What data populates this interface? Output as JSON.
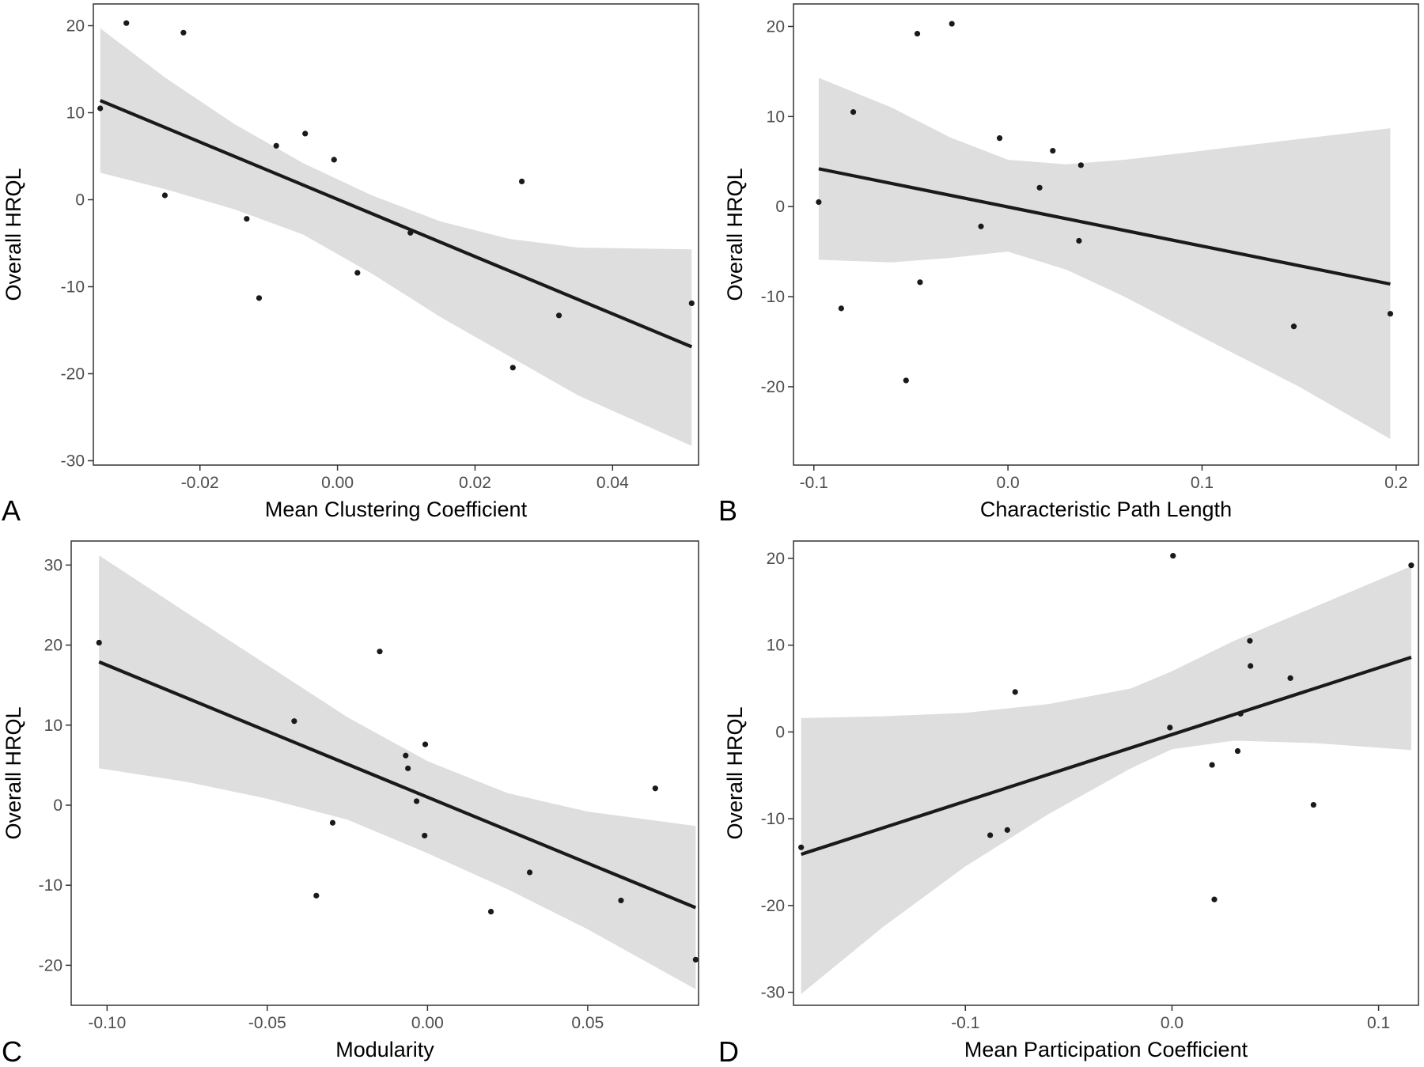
{
  "chart_data": [
    {
      "type": "scatter",
      "panel_label": "A",
      "xlabel": "Mean Clustering Coefficient",
      "ylabel": "Overall HRQL",
      "xlim": [
        -0.0355,
        0.0525
      ],
      "ylim": [
        -30.5,
        22.5
      ],
      "xticks": [
        -0.02,
        0.0,
        0.02,
        0.04
      ],
      "xtick_labels": [
        "-0.02",
        "0.00",
        "0.02",
        "0.04"
      ],
      "yticks": [
        -30,
        -20,
        -10,
        0,
        10,
        20
      ],
      "ytick_labels": [
        "-30",
        "-20",
        "-10",
        "0",
        "10",
        "20"
      ],
      "grid": false,
      "legend": false,
      "points": [
        {
          "x": -0.0345,
          "y": 10.5
        },
        {
          "x": -0.0307,
          "y": 20.3
        },
        {
          "x": -0.0224,
          "y": 19.2
        },
        {
          "x": -0.0251,
          "y": 0.5
        },
        {
          "x": -0.0132,
          "y": -2.2
        },
        {
          "x": -0.0114,
          "y": -11.3
        },
        {
          "x": -0.0089,
          "y": 6.2
        },
        {
          "x": -0.0047,
          "y": 7.6
        },
        {
          "x": -0.0005,
          "y": 4.6
        },
        {
          "x": 0.0029,
          "y": -8.4
        },
        {
          "x": 0.0106,
          "y": -3.8
        },
        {
          "x": 0.0255,
          "y": -19.3
        },
        {
          "x": 0.0268,
          "y": 2.1
        },
        {
          "x": 0.0322,
          "y": -13.3
        },
        {
          "x": 0.0515,
          "y": -11.9
        }
      ],
      "fit_line": {
        "x": [
          -0.0345,
          0.0515
        ],
        "y": [
          11.4,
          -16.9
        ]
      },
      "confidence_band": {
        "x": [
          -0.0345,
          -0.025,
          -0.015,
          -0.005,
          0.005,
          0.015,
          0.025,
          0.035,
          0.0515
        ],
        "lower": [
          3.1,
          1.2,
          -1.1,
          -4.0,
          -8.5,
          -13.5,
          -18.0,
          -22.5,
          -28.3
        ],
        "upper": [
          19.7,
          14.0,
          8.7,
          4.2,
          0.5,
          -2.5,
          -4.5,
          -5.5,
          -5.7
        ]
      }
    },
    {
      "type": "scatter",
      "panel_label": "B",
      "xlabel": "Characteristic Path Length",
      "ylabel": "Overall HRQL",
      "xlim": [
        -0.1105,
        0.2115
      ],
      "ylim": [
        -28.7,
        22.5
      ],
      "xticks": [
        -0.1,
        0.0,
        0.1,
        0.2
      ],
      "xtick_labels": [
        "-0.1",
        "0.0",
        "0.1",
        "0.2"
      ],
      "yticks": [
        -20,
        -10,
        0,
        10,
        20
      ],
      "ytick_labels": [
        "-20",
        "-10",
        "0",
        "10",
        "20"
      ],
      "grid": false,
      "legend": false,
      "points": [
        {
          "x": -0.0975,
          "y": 0.5
        },
        {
          "x": -0.0859,
          "y": -11.3
        },
        {
          "x": -0.0797,
          "y": 10.5
        },
        {
          "x": -0.0525,
          "y": -19.3
        },
        {
          "x": -0.0467,
          "y": 19.2
        },
        {
          "x": -0.0453,
          "y": -8.4
        },
        {
          "x": -0.0289,
          "y": 20.3
        },
        {
          "x": -0.0139,
          "y": -2.2
        },
        {
          "x": -0.0043,
          "y": 7.6
        },
        {
          "x": 0.0163,
          "y": 2.1
        },
        {
          "x": 0.0231,
          "y": 6.2
        },
        {
          "x": 0.0366,
          "y": -3.8
        },
        {
          "x": 0.0376,
          "y": 4.6
        },
        {
          "x": 0.1473,
          "y": -13.3
        },
        {
          "x": 0.197,
          "y": -11.9
        }
      ],
      "fit_line": {
        "x": [
          -0.0975,
          0.197
        ],
        "y": [
          4.2,
          -8.6
        ]
      },
      "confidence_band": {
        "x": [
          -0.0975,
          -0.06,
          -0.03,
          0.0,
          0.03,
          0.06,
          0.1,
          0.15,
          0.197
        ],
        "lower": [
          -5.9,
          -6.2,
          -5.7,
          -5.0,
          -7.0,
          -10.0,
          -14.5,
          -20.0,
          -25.8
        ],
        "upper": [
          14.3,
          11.0,
          7.7,
          5.2,
          4.7,
          5.2,
          6.2,
          7.5,
          8.7
        ]
      }
    },
    {
      "type": "scatter",
      "panel_label": "C",
      "xlabel": "Modularity",
      "ylabel": "Overall HRQL",
      "xlim": [
        -0.1112,
        0.0846
      ],
      "ylim": [
        -25.0,
        33.0
      ],
      "xticks": [
        -0.1,
        -0.05,
        0.0,
        0.05
      ],
      "xtick_labels": [
        "-0.10",
        "-0.05",
        "0.00",
        "0.05"
      ],
      "yticks": [
        -20,
        -10,
        0,
        10,
        20,
        30
      ],
      "ytick_labels": [
        "-20",
        "-10",
        "0",
        "10",
        "20",
        "30"
      ],
      "grid": false,
      "legend": false,
      "points": [
        {
          "x": -0.1025,
          "y": 20.3
        },
        {
          "x": -0.0416,
          "y": 10.5
        },
        {
          "x": -0.0347,
          "y": -11.3
        },
        {
          "x": -0.0296,
          "y": -2.2
        },
        {
          "x": -0.0149,
          "y": 19.2
        },
        {
          "x": -0.0068,
          "y": 6.2
        },
        {
          "x": -0.0061,
          "y": 4.6
        },
        {
          "x": -0.0034,
          "y": 0.5
        },
        {
          "x": -0.0007,
          "y": 7.6
        },
        {
          "x": -0.0009,
          "y": -3.8
        },
        {
          "x": 0.0198,
          "y": -13.3
        },
        {
          "x": 0.0319,
          "y": -8.4
        },
        {
          "x": 0.0604,
          "y": -11.9
        },
        {
          "x": 0.0711,
          "y": 2.1
        },
        {
          "x": 0.0837,
          "y": -19.3
        }
      ],
      "fit_line": {
        "x": [
          -0.1025,
          0.0837
        ],
        "y": [
          17.9,
          -12.8
        ]
      },
      "confidence_band": {
        "x": [
          -0.1025,
          -0.075,
          -0.05,
          -0.025,
          0.0,
          0.025,
          0.05,
          0.0837
        ],
        "lower": [
          4.6,
          2.9,
          0.8,
          -1.8,
          -6.0,
          -10.5,
          -15.5,
          -23.0
        ],
        "upper": [
          31.2,
          24.0,
          17.5,
          11.0,
          5.5,
          1.5,
          -0.8,
          -2.6
        ]
      }
    },
    {
      "type": "scatter",
      "panel_label": "D",
      "xlabel": "Mean Participation Coefficient",
      "ylabel": "Overall HRQL",
      "xlim": [
        -0.1832,
        0.1193
      ],
      "ylim": [
        -31.5,
        22.0
      ],
      "xticks": [
        -0.1,
        0.0,
        0.1
      ],
      "xtick_labels": [
        "-0.1",
        "0.0",
        "0.1"
      ],
      "yticks": [
        -30,
        -20,
        -10,
        0,
        10,
        20
      ],
      "ytick_labels": [
        "-30",
        "-20",
        "-10",
        "0",
        "10",
        "20"
      ],
      "grid": false,
      "legend": false,
      "points": [
        {
          "x": -0.1795,
          "y": -13.3
        },
        {
          "x": -0.088,
          "y": -11.9
        },
        {
          "x": -0.0797,
          "y": -11.3
        },
        {
          "x": -0.0759,
          "y": 4.6
        },
        {
          "x": -0.001,
          "y": 0.5
        },
        {
          "x": 0.0005,
          "y": 20.3
        },
        {
          "x": 0.0194,
          "y": -3.8
        },
        {
          "x": 0.0205,
          "y": -19.3
        },
        {
          "x": 0.0318,
          "y": -2.2
        },
        {
          "x": 0.0332,
          "y": 2.1
        },
        {
          "x": 0.0377,
          "y": 10.5
        },
        {
          "x": 0.038,
          "y": 7.6
        },
        {
          "x": 0.0573,
          "y": 6.2
        },
        {
          "x": 0.0685,
          "y": -8.4
        },
        {
          "x": 0.1158,
          "y": 19.2
        }
      ],
      "fit_line": {
        "x": [
          -0.1795,
          0.1158
        ],
        "y": [
          -14.1,
          8.6
        ]
      },
      "confidence_band": {
        "x": [
          -0.1795,
          -0.14,
          -0.1,
          -0.06,
          -0.02,
          0.0,
          0.03,
          0.07,
          0.1158
        ],
        "lower": [
          -30.2,
          -22.5,
          -15.5,
          -9.5,
          -4.2,
          -2.0,
          -1.0,
          -1.3,
          -2.1
        ],
        "upper": [
          1.6,
          1.8,
          2.2,
          3.2,
          5.0,
          7.0,
          10.5,
          14.5,
          19.1
        ]
      }
    }
  ]
}
